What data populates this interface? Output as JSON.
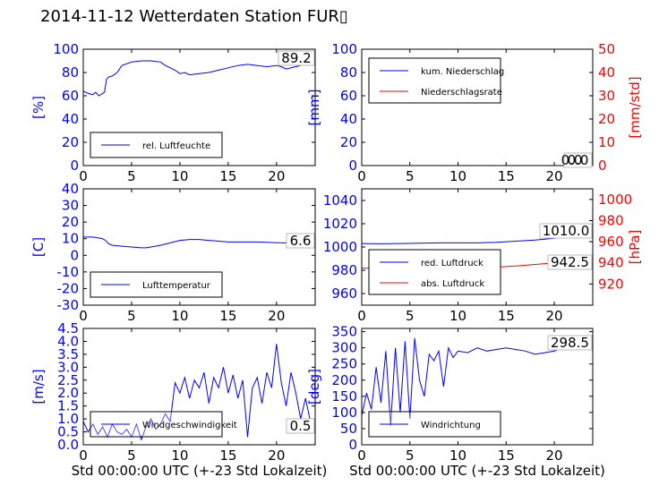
{
  "title": "2014-11-12 Wetterdaten Station FUR▯",
  "colors": {
    "blue": "#0000ff",
    "red": "#ff0000",
    "black": "#000000"
  },
  "chart_data": [
    {
      "id": "humidity",
      "type": "line",
      "xlabel": "",
      "ylabel": "[%]",
      "ylabel_color": "#0000ff",
      "xlim": [
        0,
        24
      ],
      "ylim": [
        0,
        100
      ],
      "xticks": [
        "0",
        "5",
        "10",
        "15",
        "20"
      ],
      "yticks": [
        "0",
        "20",
        "40",
        "60",
        "80",
        "100"
      ],
      "current_value": "89.2",
      "legend_position": "lower-left",
      "series": [
        {
          "name": "rel. Luftfeuchte",
          "color": "#0000ff",
          "x": [
            0,
            0.5,
            1,
            1.3,
            1.6,
            2,
            2.2,
            2.4,
            2.6,
            3,
            3.5,
            4,
            5,
            6,
            7,
            8,
            8.5,
            9,
            9.5,
            10,
            10.5,
            11,
            12,
            13,
            14,
            15,
            16,
            17,
            18,
            19,
            20,
            20.5,
            21,
            22,
            23,
            24
          ],
          "y": [
            64,
            62,
            61,
            63,
            60,
            62,
            63,
            74,
            76,
            77,
            80,
            86,
            89,
            90,
            90,
            89,
            86,
            84,
            82,
            79,
            80,
            78,
            79,
            80,
            82,
            84,
            86,
            87,
            86,
            85,
            86,
            85,
            83,
            85,
            87,
            89
          ]
        }
      ]
    },
    {
      "id": "precip",
      "type": "line",
      "xlabel": "",
      "ylabel": "[mm]",
      "ylabel_color": "#0000ff",
      "ylabel_right": "[mm/std]",
      "ylabel_right_color": "#ff0000",
      "xlim": [
        0,
        24
      ],
      "ylim": [
        0,
        100
      ],
      "ylim_right": [
        0,
        50
      ],
      "xticks": [
        "0",
        "5",
        "10",
        "15",
        "20"
      ],
      "yticks": [
        "0",
        "20",
        "40",
        "60",
        "80",
        "100"
      ],
      "yticks_right": [
        "0",
        "10",
        "20",
        "30",
        "40",
        "50"
      ],
      "current_value": "0.0",
      "current_value_2": "0.0",
      "legend_position": "upper-left",
      "series": [
        {
          "name": "kum. Niederschlag",
          "color": "#0000ff",
          "x": [
            0,
            24
          ],
          "y": [
            0,
            0
          ]
        },
        {
          "name": "Niederschlagsrate",
          "color": "#ff0000",
          "axis": "right",
          "x": [
            0,
            24
          ],
          "y": [
            0,
            0
          ]
        }
      ]
    },
    {
      "id": "temperature",
      "type": "line",
      "xlabel": "",
      "ylabel": "[C]",
      "ylabel_color": "#0000ff",
      "xlim": [
        0,
        24
      ],
      "ylim": [
        -30,
        40
      ],
      "xticks": [
        "0",
        "5",
        "10",
        "15",
        "20"
      ],
      "yticks": [
        "-30",
        "-20",
        "-10",
        "0",
        "10",
        "20",
        "30",
        "40"
      ],
      "current_value": "6.6",
      "legend_position": "lower-left",
      "series": [
        {
          "name": "Lufttemperatur",
          "color": "#0000ff",
          "x": [
            0,
            0.5,
            1,
            1.5,
            2,
            2.3,
            2.6,
            3,
            4,
            5,
            6,
            6.5,
            7,
            8,
            9,
            10,
            11,
            12,
            13,
            14,
            15,
            16,
            17,
            18,
            19,
            20,
            21,
            22,
            23,
            24
          ],
          "y": [
            11,
            11,
            11,
            10.5,
            10,
            9,
            7,
            6,
            5.5,
            5,
            4.5,
            4.5,
            5,
            6,
            7.5,
            9,
            9.5,
            9.5,
            9,
            8.5,
            8,
            8,
            8,
            8,
            7.8,
            7.6,
            7.5,
            7,
            6.8,
            6.6
          ]
        }
      ]
    },
    {
      "id": "pressure",
      "type": "line",
      "xlabel": "",
      "ylabel": "",
      "ylabel_right": "[hPa]",
      "ylabel_right_color": "#ff0000",
      "xlim": [
        0,
        24
      ],
      "ylim": [
        950,
        1050
      ],
      "ylim_right": [
        900,
        1010
      ],
      "xticks": [
        "0",
        "5",
        "10",
        "15",
        "20"
      ],
      "yticks": [
        "960",
        "980",
        "1000",
        "1020",
        "1040"
      ],
      "yticks_right": [
        "920",
        "940",
        "960",
        "980",
        "1000"
      ],
      "current_value": "1010.0",
      "current_value_2": "942.5",
      "legend_position": "lower-left",
      "series": [
        {
          "name": "red. Luftdruck",
          "color": "#0000ff",
          "x": [
            0,
            2,
            4,
            6,
            8,
            10,
            12,
            14,
            16,
            18,
            20,
            22,
            24
          ],
          "y": [
            1003,
            1002.8,
            1003,
            1003.2,
            1003.5,
            1003.5,
            1003.5,
            1004,
            1005,
            1006,
            1007.5,
            1009,
            1010
          ]
        },
        {
          "name": "abs. Luftdruck",
          "color": "#ff0000",
          "axis": "right",
          "x": [
            0,
            2,
            4,
            6,
            8,
            10,
            12,
            14,
            16,
            18,
            20,
            22,
            24
          ],
          "y": [
            935,
            934.8,
            935,
            935,
            935.2,
            935.3,
            935.5,
            936,
            937,
            938.5,
            940,
            941.5,
            942.5
          ]
        }
      ]
    },
    {
      "id": "wind_speed",
      "type": "line",
      "xlabel": "Std 00:00:00 UTC (+-23 Std Lokalzeit)",
      "ylabel": "[m/s]",
      "ylabel_color": "#0000ff",
      "xlim": [
        0,
        24
      ],
      "ylim": [
        0,
        4.5
      ],
      "xticks": [
        "0",
        "5",
        "10",
        "15",
        "20"
      ],
      "yticks": [
        "0.0",
        "0.5",
        "1.0",
        "1.5",
        "2.0",
        "2.5",
        "3.0",
        "3.5",
        "4.0",
        "4.5"
      ],
      "current_value": "0.5",
      "legend_position": "lower-left",
      "series": [
        {
          "name": "Windgeschwindigkeit",
          "color": "#0000ff",
          "x": [
            0,
            0.5,
            1,
            1.5,
            2,
            2.5,
            3,
            3.5,
            4,
            4.5,
            5,
            5.5,
            6,
            6.5,
            7,
            7.5,
            8,
            8.5,
            9,
            9.5,
            10,
            10.5,
            11,
            11.5,
            12,
            12.5,
            13,
            13.5,
            14,
            14.5,
            15,
            15.5,
            16,
            16.5,
            17,
            17.5,
            18,
            18.5,
            19,
            19.5,
            20,
            20.5,
            21,
            21.5,
            22,
            22.5,
            23,
            23.5,
            24
          ],
          "y": [
            0.9,
            0.5,
            0.8,
            0.4,
            0.7,
            0.3,
            0.8,
            0.5,
            0.4,
            0.6,
            0.3,
            0.8,
            0.2,
            0.7,
            1.0,
            0.6,
            0.8,
            1.2,
            0.9,
            2.4,
            2.0,
            2.6,
            1.8,
            2.5,
            2.2,
            2.8,
            1.6,
            2.6,
            2.2,
            3.0,
            2.0,
            2.7,
            1.8,
            2.5,
            0.3,
            2.2,
            2.6,
            1.6,
            2.8,
            2.2,
            3.9,
            2.4,
            1.5,
            2.8,
            2.0,
            1.0,
            1.8,
            0.9,
            0.5
          ]
        }
      ]
    },
    {
      "id": "wind_direction",
      "type": "line",
      "xlabel": "Std 00:00:00 UTC (+-23 Std Lokalzeit)",
      "ylabel": "[deg]",
      "ylabel_color": "#0000ff",
      "xlim": [
        0,
        24
      ],
      "ylim": [
        0,
        360
      ],
      "xticks": [
        "0",
        "5",
        "10",
        "15",
        "20"
      ],
      "yticks": [
        "0",
        "50",
        "100",
        "150",
        "200",
        "250",
        "300",
        "350"
      ],
      "current_value": "298.5",
      "legend_position": "lower-left",
      "series": [
        {
          "name": "Windrichtung",
          "color": "#0000ff",
          "x": [
            0,
            0.5,
            1,
            1.5,
            2,
            2.5,
            3,
            3.5,
            4,
            4.5,
            5,
            5.5,
            6,
            6.5,
            7,
            7.5,
            8,
            8.5,
            9,
            9.5,
            10,
            11,
            12,
            13,
            14,
            15,
            16,
            17,
            18,
            19,
            20,
            21,
            22,
            23,
            24
          ],
          "y": [
            90,
            160,
            110,
            240,
            130,
            290,
            60,
            300,
            100,
            320,
            80,
            330,
            200,
            150,
            280,
            260,
            290,
            180,
            300,
            270,
            290,
            285,
            300,
            290,
            295,
            300,
            295,
            290,
            280,
            285,
            290,
            300,
            295,
            300,
            298.5
          ]
        }
      ]
    }
  ]
}
